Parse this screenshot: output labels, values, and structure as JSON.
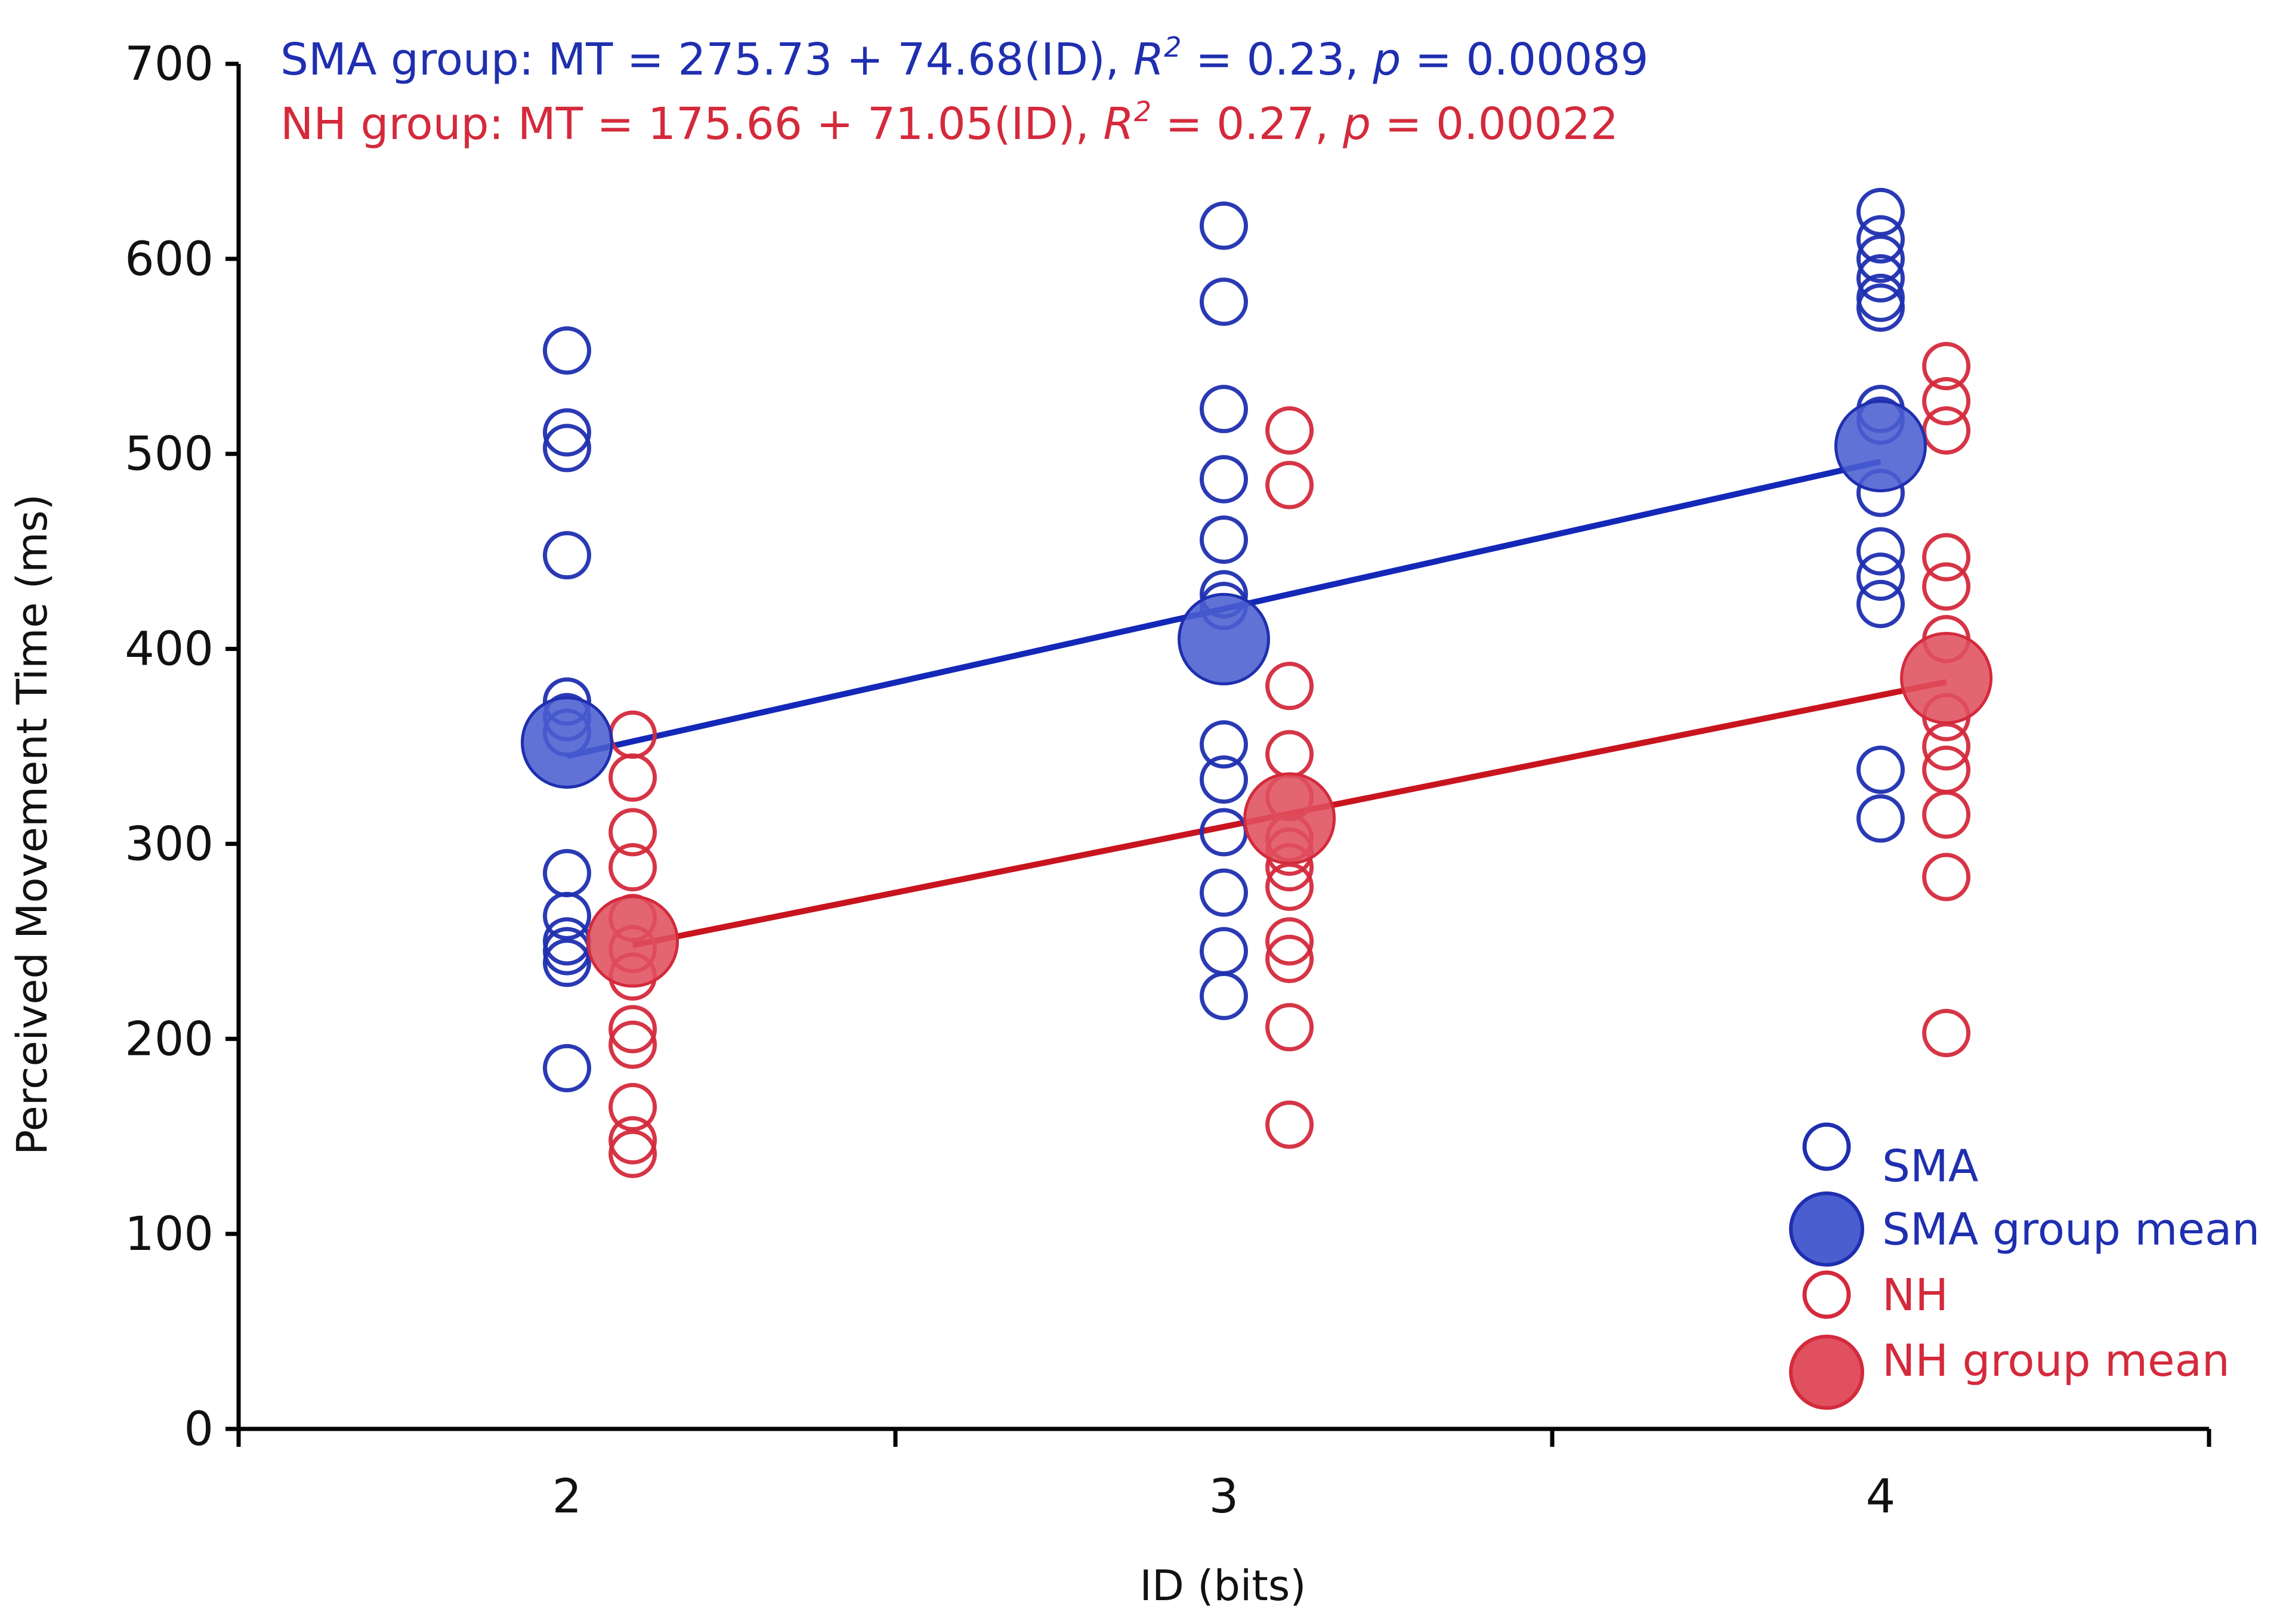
{
  "chart_data": {
    "type": "scatter",
    "title": "",
    "xlabel": "ID (bits)",
    "ylabel": "Perceived Movement Time (ms)",
    "xlim": [
      1.5,
      4.5
    ],
    "ylim": [
      0,
      700
    ],
    "x_ticks": [
      2,
      3,
      4
    ],
    "y_ticks": [
      0,
      100,
      200,
      300,
      400,
      500,
      600,
      700
    ],
    "colors": {
      "sma": "#1f2fb0",
      "sma_mean_fill": "#4a5ed0",
      "nh": "#d42a3c",
      "nh_mean_fill": "#e0505e",
      "sma_line": "#1428b8",
      "nh_line": "#c8141e"
    },
    "annotations": [
      {
        "group": "sma",
        "prefix": "SMA group: MT = 275.73 + 74.68(ID), ",
        "r_label": "R",
        "r_sup": "2",
        "r_value": " = 0.23, ",
        "p_label": "p",
        "p_value": " = 0.00089"
      },
      {
        "group": "nh",
        "prefix": "NH group: MT = 175.66 + 71.05(ID), ",
        "r_label": "R",
        "r_sup": "2",
        "r_value": " = 0.27, ",
        "p_label": "p",
        "p_value": " = 0.00022"
      }
    ],
    "legend": {
      "position": "bottom-right",
      "entries": [
        "SMA",
        "SMA group mean",
        "NH",
        "NH group mean"
      ]
    },
    "series": [
      {
        "name": "SMA",
        "points": [
          {
            "x": 2,
            "ys": [
              553,
              511,
              503,
              448,
              373,
              365,
              357,
              285,
              263,
              250,
              245,
              239,
              185
            ]
          },
          {
            "x": 3,
            "ys": [
              617,
              578,
              523,
              487,
              456,
              428,
              422,
              351,
              333,
              306,
              275,
              245,
              222
            ]
          },
          {
            "x": 4,
            "ys": [
              624,
              610,
              600,
              590,
              580,
              575,
              523,
              517,
              480,
              450,
              437,
              423,
              338,
              313
            ]
          }
        ]
      },
      {
        "name": "SMA group mean",
        "points": [
          {
            "x": 2,
            "y": 352
          },
          {
            "x": 3,
            "y": 405
          },
          {
            "x": 4,
            "y": 504
          }
        ]
      },
      {
        "name": "NH",
        "points": [
          {
            "x": 2.1,
            "ys": [
              356,
              334,
              306,
              288,
              262,
              246,
              232,
              205,
              197,
              165,
              148,
              141
            ]
          },
          {
            "x": 3.1,
            "ys": [
              512,
              484,
              381,
              346,
              324,
              303,
              296,
              288,
              278,
              250,
              241,
              206,
              156
            ]
          },
          {
            "x": 4.1,
            "ys": [
              545,
              527,
              512,
              447,
              432,
              405,
              365,
              350,
              338,
              315,
              283,
              203
            ]
          }
        ]
      },
      {
        "name": "NH group mean",
        "points": [
          {
            "x": 2.1,
            "y": 250
          },
          {
            "x": 3.1,
            "y": 313
          },
          {
            "x": 4.1,
            "y": 385
          }
        ]
      }
    ],
    "regression_lines": [
      {
        "name": "SMA",
        "x": [
          2,
          4
        ],
        "y": [
          345,
          496
        ]
      },
      {
        "name": "NH",
        "x": [
          2.1,
          4.1
        ],
        "y": [
          248,
          383
        ]
      }
    ]
  }
}
